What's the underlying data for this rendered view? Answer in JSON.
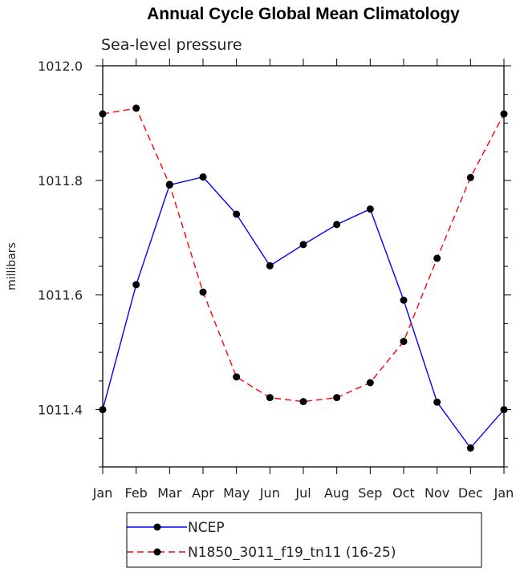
{
  "chart_data": {
    "type": "line",
    "title": "Annual Cycle Global Mean Climatology",
    "subtitle": "Sea-level pressure",
    "xlabel": "",
    "ylabel": "millibars",
    "categories": [
      "Jan",
      "Feb",
      "Mar",
      "Apr",
      "May",
      "Jun",
      "Jul",
      "Aug",
      "Sep",
      "Oct",
      "Nov",
      "Dec",
      "Jan"
    ],
    "ylim": [
      1011.3,
      1012.0
    ],
    "yticks": [
      1011.4,
      1011.6,
      1011.8,
      1012.0
    ],
    "ytick_labels": [
      "1011.4",
      "1011.6",
      "1011.8",
      "1012.0"
    ],
    "grid": false,
    "legend_position": "bottom",
    "series": [
      {
        "name": "NCEP",
        "color": "#0000ff",
        "dash": "solid",
        "values": [
          1011.4,
          1011.618,
          1011.792,
          1011.806,
          1011.741,
          1011.651,
          1011.688,
          1011.723,
          1011.75,
          1011.591,
          1011.413,
          1011.333,
          1011.4
        ]
      },
      {
        "name": "N1850_3011_f19_tn11 (16-25)",
        "color": "#ff0000",
        "dash": "dashed",
        "values": [
          1011.916,
          1011.926,
          1011.793,
          1011.605,
          1011.457,
          1011.421,
          1011.414,
          1011.421,
          1011.447,
          1011.519,
          1011.664,
          1011.805,
          1011.916
        ]
      }
    ]
  }
}
